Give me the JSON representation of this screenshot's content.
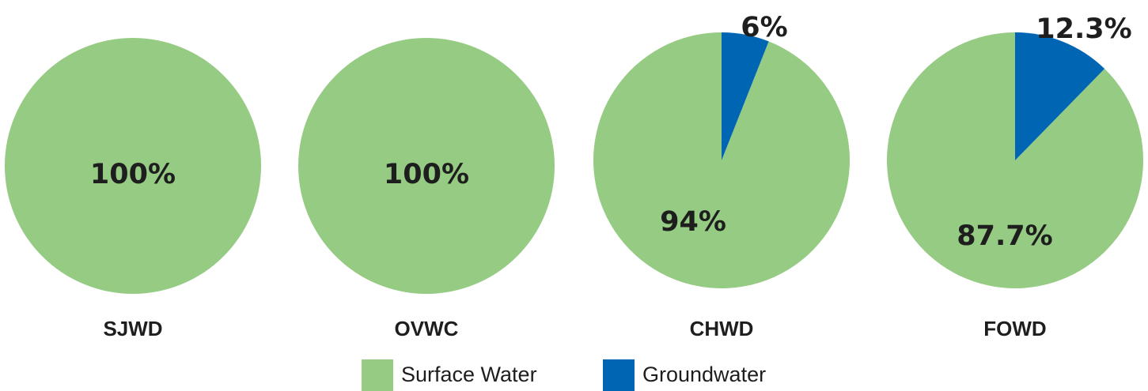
{
  "chart_data": [
    {
      "type": "pie",
      "title": "SJWD",
      "slices": [
        {
          "name": "Surface Water",
          "value": 100,
          "label": "100%"
        }
      ]
    },
    {
      "type": "pie",
      "title": "OVWC",
      "slices": [
        {
          "name": "Surface Water",
          "value": 100,
          "label": "100%"
        }
      ]
    },
    {
      "type": "pie",
      "title": "CHWD",
      "slices": [
        {
          "name": "Surface Water",
          "value": 94,
          "label": "94%"
        },
        {
          "name": "Groundwater",
          "value": 6,
          "label": "6%"
        }
      ]
    },
    {
      "type": "pie",
      "title": "FOWD",
      "slices": [
        {
          "name": "Surface Water",
          "value": 87.7,
          "label": "87.7%"
        },
        {
          "name": "Groundwater",
          "value": 12.3,
          "label": "12.3%"
        }
      ]
    }
  ],
  "legend": {
    "placement": "bottom-center",
    "items": [
      {
        "name": "Surface Water",
        "color": "#95cb82"
      },
      {
        "name": "Groundwater",
        "color": "#0066b3"
      }
    ]
  },
  "colors": {
    "Surface Water": "#95cb82",
    "Groundwater": "#0066b3"
  }
}
